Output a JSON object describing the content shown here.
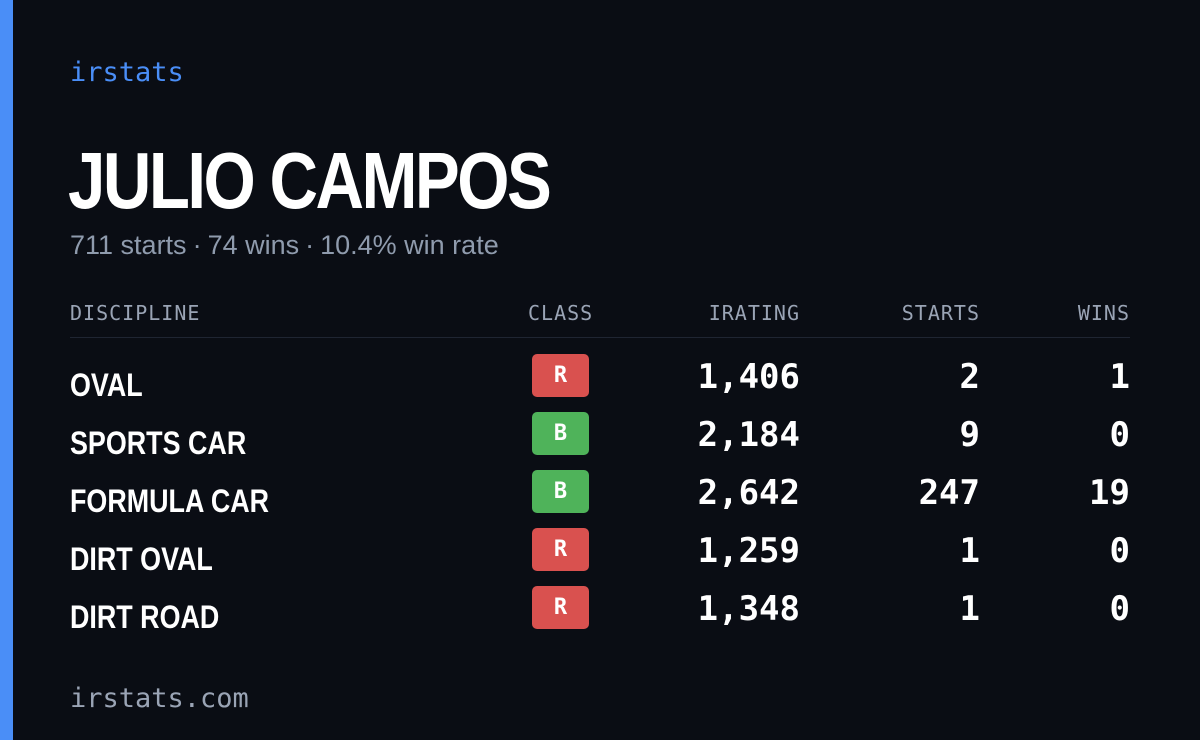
{
  "brand": "irstats",
  "driver": {
    "name": "JULIO CAMPOS",
    "starts_text": "711 starts",
    "wins_text": "74 wins",
    "win_rate_text": "10.4% win rate",
    "separator": "·"
  },
  "table": {
    "headers": {
      "discipline": "DISCIPLINE",
      "class": "CLASS",
      "irating": "IRATING",
      "starts": "STARTS",
      "wins": "WINS"
    },
    "rows": [
      {
        "discipline": "OVAL",
        "class": "R",
        "class_color": "#d9514f",
        "irating": "1,406",
        "starts": "2",
        "wins": "1"
      },
      {
        "discipline": "SPORTS CAR",
        "class": "B",
        "class_color": "#4fb35a",
        "irating": "2,184",
        "starts": "9",
        "wins": "0"
      },
      {
        "discipline": "FORMULA CAR",
        "class": "B",
        "class_color": "#4fb35a",
        "irating": "2,642",
        "starts": "247",
        "wins": "19"
      },
      {
        "discipline": "DIRT OVAL",
        "class": "R",
        "class_color": "#d9514f",
        "irating": "1,259",
        "starts": "1",
        "wins": "0"
      },
      {
        "discipline": "DIRT ROAD",
        "class": "R",
        "class_color": "#d9514f",
        "irating": "1,348",
        "starts": "1",
        "wins": "0"
      }
    ]
  },
  "footer": {
    "url": "irstats.com"
  },
  "colors": {
    "background": "#0a0d14",
    "accent": "#4a8ef7",
    "muted_text": "#8f9bad",
    "class_r": "#d9514f",
    "class_b": "#4fb35a"
  }
}
